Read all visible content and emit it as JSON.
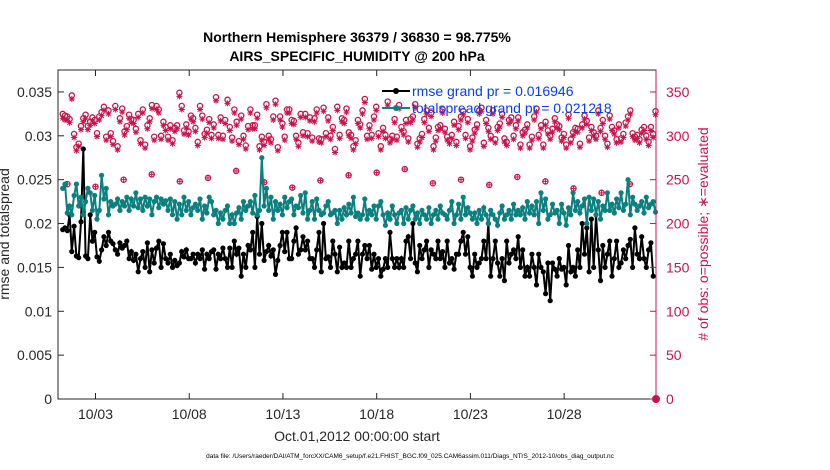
{
  "chart_data": {
    "type": "line",
    "title": "Northern Hemisphere 36379 / 36830 = 98.775%",
    "subtitle": "AIRS_SPECIFIC_HUMIDITY @ 200 hPa",
    "xlabel": "Oct.01,2012 00:00:00 start",
    "ylabel": "rmse and totalspread",
    "y2label": "# of obs: o=possible; ∗=evaluated",
    "footnote": "data file: /Users/raeder/DAI/ATM_forcXX/CAM6_setup/f.e21.FHIST_BGC.f09_025.CAM6assim.011/Diags_NTrS_2012-10/obs_diag_output.nc",
    "x_ticks": [
      "10/03",
      "10/08",
      "10/13",
      "10/18",
      "10/23",
      "10/28"
    ],
    "x_tick_days": [
      3,
      8,
      13,
      18,
      23,
      28
    ],
    "xlim_days": [
      1,
      32.9
    ],
    "y_ticks": [
      "0",
      "0.005",
      "0.01",
      "0.015",
      "0.02",
      "0.025",
      "0.03",
      "0.035"
    ],
    "ylim": [
      0,
      0.0375
    ],
    "y2_ticks": [
      "0",
      "50",
      "100",
      "150",
      "200",
      "250",
      "300",
      "350"
    ],
    "y2lim": [
      0,
      375
    ],
    "grid": false,
    "legend_position": "top-right",
    "colors": {
      "rmse": "#000000",
      "spread": "#0c7f7f",
      "obs": "#c8144c",
      "legend_text": "#0a3cf0"
    },
    "series": [
      {
        "name": "rmse grand pr = 0.016946",
        "color": "#000000",
        "values": [
          0.0193,
          0.0195,
          0.0192,
          0.021,
          0.0168,
          0.0197,
          0.0163,
          0.0161,
          0.0202,
          0.0285,
          0.0163,
          0.016,
          0.021,
          0.018,
          0.019,
          0.0162,
          0.0157,
          0.017,
          0.0185,
          0.0175,
          0.019,
          0.018,
          0.0177,
          0.017,
          0.0165,
          0.0178,
          0.0172,
          0.0175,
          0.018,
          0.016,
          0.0168,
          0.0158,
          0.0165,
          0.0145,
          0.016,
          0.0168,
          0.015,
          0.0178,
          0.0145,
          0.017,
          0.0155,
          0.0172,
          0.018,
          0.015,
          0.0177,
          0.016,
          0.0155,
          0.0165,
          0.015,
          0.0158,
          0.0152,
          0.0155,
          0.0168,
          0.0162,
          0.017,
          0.016,
          0.016,
          0.0165,
          0.0155,
          0.0165,
          0.016,
          0.017,
          0.0148,
          0.0165,
          0.016,
          0.0168,
          0.017,
          0.0148,
          0.0165,
          0.016,
          0.0172,
          0.016,
          0.015,
          0.0172,
          0.015,
          0.018,
          0.0165,
          0.0172,
          0.014,
          0.0165,
          0.015,
          0.0175,
          0.017,
          0.019,
          0.015,
          0.0208,
          0.0165,
          0.02,
          0.0158,
          0.0168,
          0.0175,
          0.0163,
          0.017,
          0.0142,
          0.0158,
          0.0175,
          0.019,
          0.0168,
          0.019,
          0.016,
          0.016,
          0.018,
          0.0195,
          0.0165,
          0.017,
          0.0185,
          0.017,
          0.018,
          0.016,
          0.016,
          0.015,
          0.017,
          0.019,
          0.0145,
          0.02,
          0.016,
          0.0162,
          0.015,
          0.018,
          0.0165,
          0.0145,
          0.0173,
          0.015,
          0.0155,
          0.015,
          0.018,
          0.015,
          0.016,
          0.0165,
          0.018,
          0.014,
          0.0165,
          0.0175,
          0.016,
          0.0175,
          0.0148,
          0.0165,
          0.015,
          0.016,
          0.014,
          0.0148,
          0.016,
          0.015,
          0.019,
          0.016,
          0.015,
          0.016,
          0.015,
          0.016,
          0.015,
          0.018,
          0.0185,
          0.016,
          0.02,
          0.0155,
          0.0145,
          0.0175,
          0.016,
          0.017,
          0.018,
          0.015,
          0.017,
          0.0165,
          0.016,
          0.018,
          0.016,
          0.0168,
          0.015,
          0.018,
          0.0155,
          0.016,
          0.0148,
          0.0165,
          0.0165,
          0.018,
          0.019,
          0.0165,
          0.0185,
          0.015,
          0.014,
          0.0165,
          0.015,
          0.0155,
          0.016,
          0.018,
          0.016,
          0.02,
          0.014,
          0.016,
          0.018,
          0.0155,
          0.014,
          0.016,
          0.0135,
          0.018,
          0.0155,
          0.0165,
          0.017,
          0.016,
          0.0185,
          0.015,
          0.017,
          0.014,
          0.015,
          0.014,
          0.0165,
          0.015,
          0.013,
          0.0165,
          0.015,
          0.0145,
          0.012,
          0.0155,
          0.0112,
          0.0155,
          0.0148,
          0.014,
          0.016,
          0.0148,
          0.015,
          0.013,
          0.0175,
          0.0145,
          0.015,
          0.014,
          0.017,
          0.015,
          0.02,
          0.0165,
          0.0195,
          0.0145,
          0.0205,
          0.015,
          0.021,
          0.017,
          0.0135,
          0.0175,
          0.015,
          0.0165,
          0.018,
          0.014,
          0.016,
          0.018,
          0.015,
          0.0155,
          0.017,
          0.016,
          0.0175,
          0.0182,
          0.015,
          0.0195,
          0.0165,
          0.016,
          0.0185,
          0.016,
          0.015,
          0.017,
          0.0178,
          0.014
        ]
      },
      {
        "name": "totalspread grand pr = 0.021218",
        "color": "#0c7f7f",
        "values": [
          0.024,
          0.0245,
          0.0212,
          0.022,
          0.021,
          0.0232,
          0.0245,
          0.022,
          0.023,
          0.021,
          0.0225,
          0.024,
          0.0235,
          0.0215,
          0.0232,
          0.0205,
          0.0215,
          0.0255,
          0.0228,
          0.024,
          0.021,
          0.0225,
          0.022,
          0.0222,
          0.0228,
          0.0215,
          0.0225,
          0.022,
          0.023,
          0.0215,
          0.0228,
          0.022,
          0.0235,
          0.0218,
          0.0228,
          0.0215,
          0.023,
          0.022,
          0.0228,
          0.021,
          0.0225,
          0.023,
          0.0218,
          0.0228,
          0.0222,
          0.0226,
          0.0215,
          0.0228,
          0.021,
          0.0225,
          0.0205,
          0.0222,
          0.021,
          0.023,
          0.0215,
          0.0225,
          0.021,
          0.0218,
          0.0222,
          0.0215,
          0.0228,
          0.0205,
          0.022,
          0.0212,
          0.023,
          0.0225,
          0.021,
          0.0215,
          0.02,
          0.0212,
          0.0205,
          0.0215,
          0.022,
          0.02,
          0.021,
          0.02,
          0.0212,
          0.0218,
          0.0205,
          0.0225,
          0.0215,
          0.022,
          0.0225,
          0.0212,
          0.0232,
          0.021,
          0.0215,
          0.0275,
          0.022,
          0.024,
          0.0215,
          0.023,
          0.0205,
          0.0225,
          0.0215,
          0.0222,
          0.021,
          0.023,
          0.0218,
          0.0225,
          0.0228,
          0.021,
          0.022,
          0.0218,
          0.0232,
          0.0212,
          0.0235,
          0.0205,
          0.0215,
          0.0225,
          0.0205,
          0.0228,
          0.0215,
          0.021,
          0.0212,
          0.022,
          0.0225,
          0.021,
          0.0212,
          0.0215,
          0.02,
          0.0215,
          0.0205,
          0.0218,
          0.021,
          0.0222,
          0.0212,
          0.023,
          0.0208,
          0.0212,
          0.0205,
          0.021,
          0.0228,
          0.0205,
          0.0215,
          0.021,
          0.022,
          0.0205,
          0.022,
          0.0225,
          0.021,
          0.0198,
          0.0212,
          0.0205,
          0.022,
          0.021,
          0.02,
          0.0212,
          0.0215,
          0.02,
          0.0218,
          0.0205,
          0.0215,
          0.022,
          0.0205,
          0.0212,
          0.02,
          0.0215,
          0.021,
          0.0205,
          0.0218,
          0.02,
          0.021,
          0.0215,
          0.0205,
          0.022,
          0.0212,
          0.021,
          0.0205,
          0.0215,
          0.0225,
          0.02,
          0.021,
          0.0222,
          0.0205,
          0.023,
          0.021,
          0.0218,
          0.0212,
          0.0205,
          0.0212,
          0.02,
          0.0215,
          0.0205,
          0.0218,
          0.021,
          0.02,
          0.0215,
          0.021,
          0.0205,
          0.0198,
          0.0212,
          0.022,
          0.0205,
          0.021,
          0.0215,
          0.0205,
          0.0222,
          0.021,
          0.0215,
          0.021,
          0.0218,
          0.0205,
          0.0225,
          0.0212,
          0.022,
          0.021,
          0.0225,
          0.02,
          0.0235,
          0.0215,
          0.0228,
          0.0205,
          0.021,
          0.0222,
          0.0212,
          0.0215,
          0.02,
          0.0222,
          0.0212,
          0.0198,
          0.0218,
          0.021,
          0.0235,
          0.0215,
          0.0225,
          0.0212,
          0.022,
          0.0228,
          0.02,
          0.023,
          0.0215,
          0.0228,
          0.021,
          0.0225,
          0.0205,
          0.022,
          0.0215,
          0.0235,
          0.0215,
          0.0222,
          0.0212,
          0.0228,
          0.0218,
          0.0235,
          0.0215,
          0.0222,
          0.025,
          0.021,
          0.023,
          0.0222,
          0.0215,
          0.022,
          0.0225,
          0.0212,
          0.023,
          0.0218,
          0.0222,
          0.0225,
          0.0213,
          0.0215,
          0.0213
        ]
      }
    ],
    "obs_possible": [
      325,
      323,
      322,
      319,
      346,
      302,
      287,
      291,
      311,
      320,
      324,
      311,
      316,
      321,
      318,
      303,
      322,
      327,
      333,
      299,
      329,
      303,
      294,
      334,
      288,
      320,
      331,
      305,
      311,
      324,
      319,
      318,
      308,
      325,
      295,
      330,
      290,
      312,
      320,
      335,
      299,
      334,
      330,
      300,
      316,
      310,
      299,
      312,
      295,
      309,
      312,
      349,
      334,
      306,
      313,
      305,
      323,
      320,
      309,
      293,
      334,
      323,
      302,
      307,
      319,
      301,
      313,
      344,
      301,
      321,
      300,
      318,
      341,
      310,
      298,
      330,
      316,
      294,
      323,
      300,
      289,
      311,
      330,
      312,
      312,
      324,
      288,
      299,
      293,
      336,
      300,
      296,
      322,
      340,
      287,
      322,
      314,
      299,
      330,
      330,
      318,
      317,
      300,
      292,
      325,
      304,
      325,
      303,
      321,
      298,
      320,
      330,
      297,
      296,
      332,
      303,
      321,
      300,
      310,
      285,
      333,
      301,
      320,
      318,
      331,
      304,
      301,
      288,
      295,
      318,
      313,
      329,
      342,
      300,
      312,
      301,
      322,
      333,
      303,
      288,
      309,
      301,
      339,
      296,
      300,
      319,
      299,
      335,
      310,
      305,
      318,
      297,
      319,
      322,
      336,
      291,
      297,
      302,
      319,
      329,
      309,
      326,
      288,
      298,
      310,
      312,
      330,
      308,
      299,
      295,
      301,
      316,
      293,
      311,
      322,
      328,
      301,
      319,
      288,
      298,
      307,
      313,
      329,
      332,
      292,
      318,
      309,
      300,
      329,
      296,
      310,
      314,
      325,
      297,
      293,
      318,
      321,
      300,
      312,
      321,
      290,
      304,
      307,
      313,
      290,
      299,
      322,
      331,
      301,
      312,
      290,
      316,
      306,
      300,
      308,
      320,
      313,
      311,
      298,
      302,
      290,
      324,
      296,
      304,
      309,
      308,
      291,
      313,
      323,
      317,
      298,
      310,
      304,
      300,
      329,
      309,
      318,
      300,
      291,
      323,
      310,
      306,
      296,
      313,
      297,
      302,
      315,
      322,
      329,
      303,
      299,
      301,
      296,
      307,
      310,
      300,
      293,
      310,
      302,
      328,
      312,
      315,
      299,
      304,
      315,
      306,
      312,
      297,
      303,
      299,
      289
    ],
    "obs_evaluated": [
      320,
      318,
      318,
      315,
      342,
      298,
      283,
      288,
      307,
      316,
      320,
      307,
      312,
      317,
      314,
      299,
      318,
      323,
      329,
      295,
      325,
      299,
      290,
      330,
      284,
      316,
      327,
      301,
      307,
      320,
      315,
      314,
      304,
      321,
      291,
      326,
      286,
      308,
      316,
      331,
      295,
      330,
      326,
      296,
      312,
      306,
      295,
      308,
      291,
      305,
      308,
      345,
      330,
      302,
      309,
      301,
      319,
      316,
      305,
      289,
      330,
      319,
      298,
      303,
      315,
      297,
      309,
      340,
      297,
      317,
      296,
      314,
      337,
      306,
      294,
      326,
      312,
      290,
      319,
      296,
      285,
      307,
      326,
      308,
      308,
      320,
      284,
      295,
      289,
      332,
      296,
      292,
      318,
      336,
      283,
      318,
      310,
      295,
      326,
      326,
      314,
      313,
      296,
      288,
      321,
      300,
      321,
      299,
      317,
      294,
      316,
      326,
      293,
      292,
      328,
      299,
      317,
      296,
      306,
      281,
      329,
      297,
      316,
      314,
      327,
      300,
      297,
      284,
      291,
      314,
      309,
      325,
      338,
      296,
      308,
      297,
      318,
      329,
      299,
      284,
      305,
      297,
      335,
      292,
      296,
      315,
      295,
      331,
      306,
      301,
      314,
      293,
      315,
      318,
      332,
      287,
      293,
      298,
      315,
      325,
      305,
      322,
      284,
      294,
      306,
      308,
      326,
      304,
      295,
      291,
      297,
      312,
      289,
      307,
      318,
      324,
      297,
      315,
      284,
      294,
      303,
      309,
      325,
      328,
      288,
      314,
      305,
      296,
      325,
      292,
      306,
      310,
      321,
      293,
      289,
      314,
      317,
      296,
      308,
      317,
      286,
      300,
      303,
      309,
      286,
      295,
      318,
      327,
      297,
      308,
      286,
      312,
      302,
      296,
      304,
      316,
      309,
      307,
      294,
      298,
      286,
      320,
      292,
      300,
      305,
      304,
      287,
      309,
      319,
      313,
      294,
      306,
      300,
      296,
      325,
      305,
      314,
      296,
      287,
      319,
      306,
      302,
      292,
      309,
      293,
      298,
      311,
      318,
      325,
      299,
      295,
      297,
      292,
      303,
      306,
      296,
      289,
      306,
      298,
      324,
      308,
      311,
      295,
      300,
      311,
      302,
      308,
      293,
      299,
      295,
      285
    ],
    "obs_low": [
      245,
      242,
      250,
      256,
      248,
      252,
      260,
      247,
      241,
      249,
      255,
      258,
      262,
      246,
      250,
      244,
      253,
      248,
      240,
      235,
      245,
      250
    ]
  }
}
